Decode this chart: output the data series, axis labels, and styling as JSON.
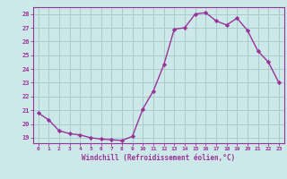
{
  "x": [
    0,
    1,
    2,
    3,
    4,
    5,
    6,
    7,
    8,
    9,
    10,
    11,
    12,
    13,
    14,
    15,
    16,
    17,
    18,
    19,
    20,
    21,
    22,
    23
  ],
  "y": [
    20.8,
    20.3,
    19.5,
    19.3,
    19.2,
    19.0,
    18.9,
    18.85,
    18.8,
    19.1,
    21.1,
    22.4,
    24.3,
    26.9,
    27.0,
    28.0,
    28.1,
    27.5,
    27.2,
    27.7,
    26.8,
    25.3,
    24.5,
    23.0
  ],
  "line_color": "#993399",
  "marker": "D",
  "markersize": 2.2,
  "linewidth": 1.0,
  "bg_color": "#cce8e8",
  "grid_color": "#aacccc",
  "xlabel": "Windchill (Refroidissement éolien,°C)",
  "xlabel_color": "#993399",
  "tick_color": "#993399",
  "axis_color": "#993399",
  "ylim": [
    18.6,
    28.5
  ],
  "xlim": [
    -0.5,
    23.5
  ],
  "yticks": [
    19,
    20,
    21,
    22,
    23,
    24,
    25,
    26,
    27,
    28
  ],
  "xticks": [
    0,
    1,
    2,
    3,
    4,
    5,
    6,
    7,
    8,
    9,
    10,
    11,
    12,
    13,
    14,
    15,
    16,
    17,
    18,
    19,
    20,
    21,
    22,
    23
  ]
}
